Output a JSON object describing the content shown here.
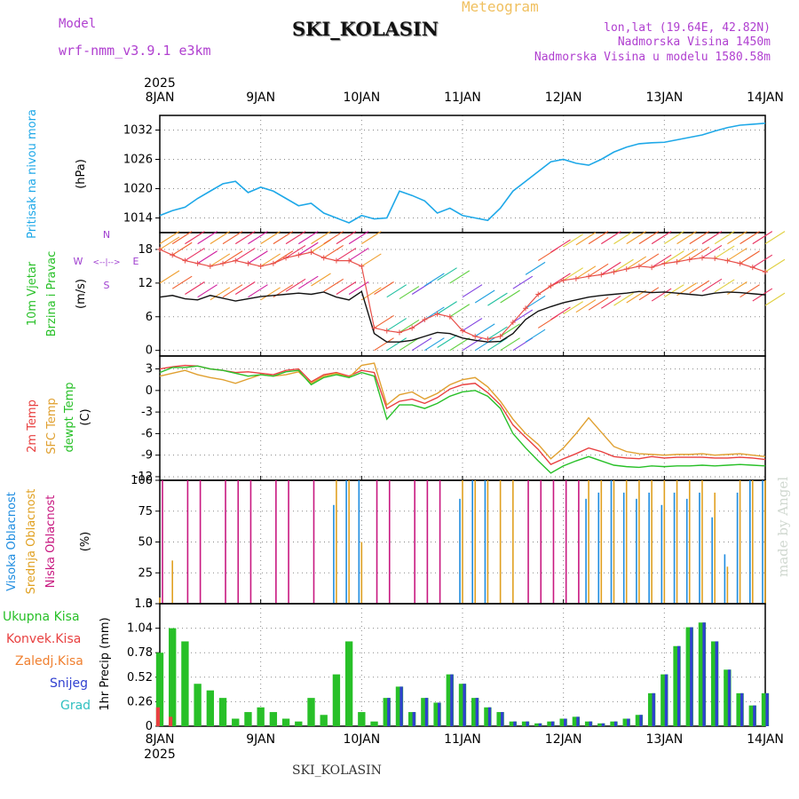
{
  "header": {
    "title": "SKI_KOLASIN",
    "meteogram_label": "Meteogram",
    "model_label": "Model",
    "model_version": "wrf-nmm_v3.9.1 e3km",
    "lonlat": "lon,lat (19.64E, 42.82N)",
    "elevation": "Nadmorska Visina 1450m",
    "model_elevation": "Nadmorska Visina u modelu 1580.58m",
    "footer": "SKI_KOLASIN",
    "made_by": "made by Angel"
  },
  "colors": {
    "pressure": "#1ea8e8",
    "wind_speed_mean": "#111111",
    "wind_gust": "#e8504a",
    "temp2m": "#e84040",
    "temp_sfc": "#e0a030",
    "dewpoint": "#28c028",
    "cloud_high": "#1e8ce0",
    "cloud_mid": "#e0a020",
    "cloud_low": "#c81880",
    "precip_total": "#28c028",
    "precip_conv": "#e84040",
    "precip_frz": "#f08030",
    "precip_snow": "#3040d0",
    "precip_grad": "#30c0c0"
  },
  "chart_data": [
    {
      "type": "line",
      "panel": "pressure",
      "ylabel_lines": [
        "Pritisak na nivou mora",
        "(hPa)"
      ],
      "ylim": [
        1011,
        1035
      ],
      "yticks": [
        1014,
        1020,
        1026,
        1032
      ],
      "x": [
        0,
        3,
        6,
        9,
        12,
        15,
        18,
        21,
        24,
        27,
        30,
        33,
        36,
        39,
        42,
        45,
        48,
        51,
        54,
        57,
        60,
        63,
        66,
        69,
        72,
        75,
        78,
        81,
        84,
        87,
        90,
        93,
        96,
        99,
        102,
        105,
        108,
        111,
        114,
        117,
        120,
        123,
        126,
        129,
        132,
        135,
        138,
        141,
        144
      ],
      "series": [
        {
          "name": "MSLP",
          "values": [
            1014.5,
            1015.5,
            1016.2,
            1018,
            1019.5,
            1021,
            1021.5,
            1019.2,
            1020.3,
            1019.5,
            1018,
            1016.5,
            1017,
            1015,
            1014,
            1013,
            1014.5,
            1013.8,
            1014,
            1019.5,
            1018.6,
            1017.5,
            1015,
            1016,
            1014.5,
            1014,
            1013.5,
            1016,
            1019.5,
            1021.5,
            1023.5,
            1025.5,
            1026,
            1025.2,
            1024.8,
            1026,
            1027.5,
            1028.5,
            1029.2,
            1029.4,
            1029.5,
            1030,
            1030.5,
            1031,
            1031.8,
            1032.5,
            1033,
            1033.2,
            1033.4
          ]
        }
      ]
    },
    {
      "type": "line",
      "panel": "wind",
      "ylabel_lines": [
        "10m Vjetar",
        "Brzina i Pravac",
        "(m/s)"
      ],
      "compass": {
        "n": "N",
        "s": "S",
        "e": "E",
        "w": "W",
        "arrow": "<--|-->"
      },
      "ylim": [
        -1,
        21
      ],
      "yticks": [
        0,
        6,
        12,
        18
      ],
      "x": [
        0,
        3,
        6,
        9,
        12,
        15,
        18,
        21,
        24,
        27,
        30,
        33,
        36,
        39,
        42,
        45,
        48,
        51,
        54,
        57,
        60,
        63,
        66,
        69,
        72,
        75,
        78,
        81,
        84,
        87,
        90,
        93,
        96,
        99,
        102,
        105,
        108,
        111,
        114,
        117,
        120,
        123,
        126,
        129,
        132,
        135,
        138,
        141,
        144
      ],
      "series": [
        {
          "name": "mean speed",
          "values": [
            9.5,
            9.8,
            9.2,
            9.0,
            9.8,
            9.3,
            8.8,
            9.2,
            9.6,
            9.8,
            10.0,
            10.2,
            10.0,
            10.4,
            9.5,
            9.0,
            10.5,
            3.0,
            1.5,
            1.5,
            1.8,
            2.5,
            3.2,
            3.0,
            2.2,
            1.8,
            1.5,
            1.6,
            3.0,
            5.5,
            7.0,
            7.8,
            8.5,
            9.0,
            9.5,
            9.8,
            10.0,
            10.2,
            10.5,
            10.3,
            10.4,
            10.2,
            10.0,
            9.8,
            10.2,
            10.4,
            10.3,
            10.1,
            9.9
          ]
        },
        {
          "name": "gust",
          "values": [
            18,
            17,
            16,
            15.5,
            15,
            15.5,
            16,
            15.5,
            15,
            15.5,
            16.5,
            17,
            17.5,
            16.5,
            16,
            16,
            15,
            4,
            3.5,
            3.2,
            4.0,
            5.5,
            6.5,
            6.0,
            3.5,
            2.5,
            2.0,
            2.5,
            5.0,
            7.5,
            10,
            11.5,
            12.5,
            12.8,
            13.2,
            13.5,
            14,
            14.5,
            15,
            14.8,
            15.5,
            15.8,
            16.2,
            16.5,
            16.4,
            16.0,
            15.5,
            14.8,
            14
          ]
        }
      ]
    },
    {
      "type": "line",
      "panel": "temperature",
      "ylabel_lines": [
        "2m Temp",
        "SFC Temp",
        "dewpt Temp",
        "(C)"
      ],
      "ylim": [
        -12.5,
        4.8
      ],
      "yticks": [
        -12,
        -9,
        -6,
        -3,
        0,
        3
      ],
      "x": [
        0,
        3,
        6,
        9,
        12,
        15,
        18,
        21,
        24,
        27,
        30,
        33,
        36,
        39,
        42,
        45,
        48,
        51,
        54,
        57,
        60,
        63,
        66,
        69,
        72,
        75,
        78,
        81,
        84,
        87,
        90,
        93,
        96,
        99,
        102,
        105,
        108,
        111,
        114,
        117,
        120,
        123,
        126,
        129,
        132,
        135,
        138,
        141,
        144
      ],
      "series": [
        {
          "name": "2m",
          "values": [
            3.0,
            3.3,
            3.5,
            3.4,
            3.0,
            2.8,
            2.5,
            2.6,
            2.4,
            2.2,
            2.8,
            3.0,
            1.2,
            2.2,
            2.5,
            2.0,
            2.8,
            2.5,
            -2.5,
            -1.5,
            -1.2,
            -1.8,
            -1.0,
            0.2,
            0.8,
            1.0,
            -0.3,
            -2.0,
            -4.8,
            -6.5,
            -8.2,
            -10.3,
            -9.5,
            -8.8,
            -8.0,
            -8.5,
            -9.2,
            -9.4,
            -9.5,
            -9.2,
            -9.4,
            -9.3,
            -9.3,
            -9.3,
            -9.4,
            -9.4,
            -9.3,
            -9.4,
            -9.6
          ]
        },
        {
          "name": "sfc",
          "values": [
            2.0,
            2.4,
            2.8,
            2.2,
            1.8,
            1.5,
            1.0,
            1.6,
            2.2,
            2.0,
            2.2,
            2.6,
            1.0,
            2.0,
            2.4,
            1.8,
            3.5,
            3.8,
            -2.0,
            -0.6,
            -0.2,
            -1.2,
            -0.4,
            0.8,
            1.5,
            1.8,
            0.5,
            -1.5,
            -4.0,
            -6.0,
            -7.5,
            -9.5,
            -8.0,
            -6.0,
            -3.8,
            -5.8,
            -7.8,
            -8.5,
            -8.8,
            -8.9,
            -9.0,
            -8.9,
            -8.9,
            -8.8,
            -9.0,
            -8.9,
            -8.8,
            -9.0,
            -9.2
          ]
        },
        {
          "name": "dewpt",
          "values": [
            2.5,
            3.2,
            3.2,
            3.4,
            3.0,
            2.8,
            2.4,
            2.0,
            2.2,
            2.0,
            2.6,
            2.8,
            0.8,
            1.8,
            2.2,
            1.8,
            2.5,
            2.0,
            -4.0,
            -2.0,
            -2.0,
            -2.5,
            -1.8,
            -0.8,
            -0.2,
            0.0,
            -0.8,
            -2.5,
            -6.0,
            -8.0,
            -9.8,
            -11.5,
            -10.5,
            -9.8,
            -9.2,
            -9.8,
            -10.4,
            -10.6,
            -10.7,
            -10.5,
            -10.6,
            -10.5,
            -10.5,
            -10.4,
            -10.5,
            -10.4,
            -10.3,
            -10.4,
            -10.5
          ]
        }
      ]
    },
    {
      "type": "bar",
      "panel": "cloud",
      "ylabel_lines": [
        "Visoka Oblacnost",
        "Srednja Oblacnost",
        "Niska Oblacnost",
        "(%)"
      ],
      "ylim": [
        0,
        100
      ],
      "yticks": [
        0,
        25,
        50,
        75,
        100
      ],
      "x": [
        0,
        3,
        6,
        9,
        12,
        15,
        18,
        21,
        24,
        27,
        30,
        33,
        36,
        39,
        42,
        45,
        48,
        51,
        54,
        57,
        60,
        63,
        66,
        69,
        72,
        75,
        78,
        81,
        84,
        87,
        90,
        93,
        96,
        99,
        102,
        105,
        108,
        111,
        114,
        117,
        120,
        123,
        126,
        129,
        132,
        135,
        138,
        141,
        144
      ],
      "series": [
        {
          "name": "high",
          "values": [
            0,
            0,
            0,
            0,
            0,
            0,
            0,
            0,
            0,
            0,
            0,
            0,
            0,
            0,
            80,
            100,
            100,
            0,
            0,
            0,
            0,
            0,
            0,
            0,
            85,
            100,
            100,
            0,
            0,
            0,
            0,
            0,
            0,
            0,
            85,
            90,
            100,
            90,
            85,
            90,
            80,
            90,
            85,
            90,
            70,
            40,
            90,
            100,
            100
          ]
        },
        {
          "name": "mid",
          "values": [
            5,
            35,
            0,
            0,
            0,
            0,
            0,
            0,
            0,
            0,
            0,
            0,
            0,
            0,
            100,
            100,
            50,
            0,
            0,
            0,
            0,
            0,
            0,
            0,
            100,
            100,
            100,
            100,
            100,
            0,
            0,
            0,
            0,
            0,
            100,
            100,
            100,
            100,
            100,
            100,
            100,
            100,
            100,
            100,
            90,
            30,
            100,
            100,
            100
          ]
        },
        {
          "name": "low",
          "values": [
            100,
            0,
            100,
            100,
            0,
            100,
            100,
            100,
            0,
            100,
            100,
            0,
            100,
            0,
            0,
            0,
            0,
            100,
            100,
            0,
            100,
            100,
            100,
            0,
            0,
            0,
            0,
            0,
            0,
            100,
            100,
            100,
            100,
            100,
            0,
            0,
            0,
            0,
            0,
            0,
            0,
            0,
            0,
            0,
            0,
            0,
            0,
            0,
            0
          ]
        }
      ]
    },
    {
      "type": "bar",
      "panel": "precip",
      "legend": [
        "Ukupna Kisa",
        "Konvek.Kisa",
        "Zaledj.Kisa",
        "Snijeg",
        "Grad"
      ],
      "ylabel_lines": [
        "1hr Precip (mm)"
      ],
      "ylim": [
        0,
        1.3
      ],
      "yticks": [
        0,
        0.26,
        0.52,
        0.78,
        1.04,
        1.3
      ],
      "x_ticks": [
        "8JAN",
        "9JAN",
        "10JAN",
        "11JAN",
        "12JAN",
        "13JAN",
        "14JAN"
      ],
      "year": "2025",
      "x": [
        0,
        3,
        6,
        9,
        12,
        15,
        18,
        21,
        24,
        27,
        30,
        33,
        36,
        39,
        42,
        45,
        48,
        51,
        54,
        57,
        60,
        63,
        66,
        69,
        72,
        75,
        78,
        81,
        84,
        87,
        90,
        93,
        96,
        99,
        102,
        105,
        108,
        111,
        114,
        117,
        120,
        123,
        126,
        129,
        132,
        135,
        138,
        141,
        144
      ],
      "series": [
        {
          "name": "total",
          "values": [
            0.78,
            1.04,
            0.9,
            0.45,
            0.38,
            0.3,
            0.08,
            0.15,
            0.2,
            0.15,
            0.08,
            0.05,
            0.3,
            0.12,
            0.55,
            0.9,
            0.15,
            0.05,
            0.3,
            0.42,
            0.15,
            0.3,
            0.25,
            0.55,
            0.45,
            0.3,
            0.2,
            0.15,
            0.05,
            0.05,
            0.03,
            0.05,
            0.08,
            0.1,
            0.05,
            0.03,
            0.05,
            0.08,
            0.12,
            0.35,
            0.55,
            0.85,
            1.05,
            1.1,
            0.9,
            0.6,
            0.35,
            0.22,
            0.35
          ]
        },
        {
          "name": "snow",
          "values": [
            0,
            0,
            0,
            0,
            0,
            0,
            0,
            0,
            0,
            0,
            0,
            0,
            0,
            0,
            0,
            0,
            0,
            0,
            0.3,
            0.42,
            0.15,
            0.3,
            0.25,
            0.55,
            0.45,
            0.3,
            0.2,
            0.15,
            0.05,
            0.05,
            0.03,
            0.05,
            0.08,
            0.1,
            0.05,
            0.03,
            0.05,
            0.08,
            0.12,
            0.35,
            0.55,
            0.85,
            1.05,
            1.1,
            0.9,
            0.6,
            0.35,
            0.22,
            0.35
          ]
        },
        {
          "name": "conv",
          "values": [
            0.2,
            0.1,
            0,
            0,
            0,
            0,
            0,
            0,
            0,
            0,
            0,
            0,
            0,
            0,
            0,
            0,
            0,
            0,
            0,
            0,
            0,
            0,
            0,
            0,
            0,
            0,
            0,
            0,
            0,
            0,
            0,
            0,
            0,
            0,
            0,
            0,
            0,
            0,
            0,
            0,
            0,
            0,
            0,
            0,
            0,
            0,
            0,
            0,
            0
          ]
        }
      ]
    }
  ]
}
